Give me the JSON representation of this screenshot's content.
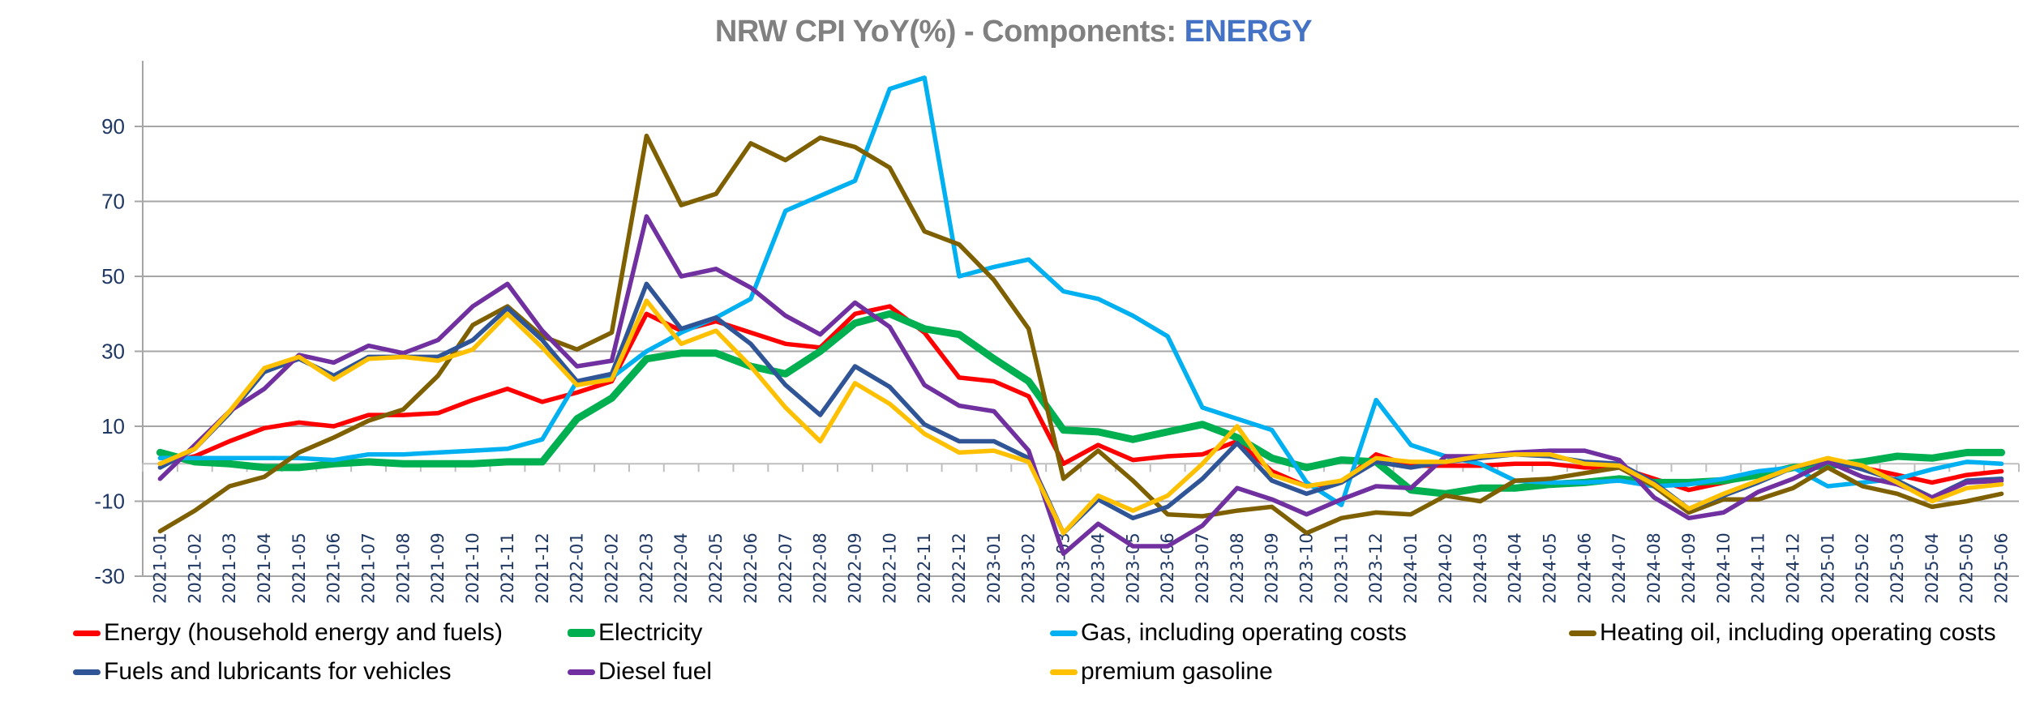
{
  "chart_data": {
    "type": "line",
    "title": "NRW CPI YoY(%) - Components: ",
    "title_accent": "ENERGY",
    "title_accent_color": "#4472c4",
    "xlabel": "",
    "ylabel": "",
    "ylim": [
      -30,
      105
    ],
    "yticks": [
      -30,
      -10,
      10,
      30,
      50,
      70,
      90
    ],
    "grid": true,
    "legend_position": "bottom",
    "categories": [
      "2021-01",
      "2021-02",
      "2021-03",
      "2021-04",
      "2021-05",
      "2021-06",
      "2021-07",
      "2021-08",
      "2021-09",
      "2021-10",
      "2021-11",
      "2021-12",
      "2022-01",
      "2022-02",
      "2022-03",
      "2022-04",
      "2022-05",
      "2022-06",
      "2022-07",
      "2022-08",
      "2022-09",
      "2022-10",
      "2022-11",
      "2022-12",
      "2023-01",
      "2023-02",
      "2023-03",
      "2023-04",
      "2023-05",
      "2023-06",
      "2023-07",
      "2023-08",
      "2023-09",
      "2023-10",
      "2023-11",
      "2023-12",
      "2024-01",
      "2024-02",
      "2024-03",
      "2024-04",
      "2024-05",
      "2024-06",
      "2024-07",
      "2024-08",
      "2024-09",
      "2024-10",
      "2024-11",
      "2024-12",
      "2025-01",
      "2025-02",
      "2025-03",
      "2025-04",
      "2025-05",
      "2025-06"
    ],
    "series": [
      {
        "name": "Energy (household energy and fuels)",
        "color": "#ff0000",
        "thick": false,
        "values": [
          0,
          2,
          6,
          9.5,
          11,
          10,
          13,
          13,
          13.5,
          17,
          20,
          16.5,
          19,
          22,
          40,
          35.5,
          38,
          35,
          32,
          31,
          40,
          42,
          35,
          23,
          22,
          18,
          0,
          5,
          1,
          2,
          2.5,
          6,
          -2,
          -6,
          -5,
          2.5,
          -0.5,
          -0.5,
          -0.5,
          0,
          0,
          -1,
          -1,
          -4,
          -7,
          -5,
          -3,
          -1,
          0,
          -1,
          -3,
          -5,
          -3,
          -2
        ]
      },
      {
        "name": "Electricity",
        "color": "#00b050",
        "thick": true,
        "values": [
          3,
          0.5,
          0,
          -1,
          -1,
          0,
          0.5,
          0,
          0,
          0,
          0.5,
          0.5,
          12,
          17.5,
          28,
          29.5,
          29.5,
          26,
          24,
          30,
          37.5,
          40,
          36,
          34.5,
          28,
          22,
          9,
          8.5,
          6.5,
          8.5,
          10.5,
          7,
          1.5,
          -1,
          1,
          0.5,
          -7,
          -8,
          -6.5,
          -6.5,
          -5.5,
          -5,
          -4,
          -5,
          -5,
          -4.5,
          -3,
          -1,
          -0.5,
          0.5,
          2,
          1.5,
          3,
          3
        ]
      },
      {
        "name": "Gas, including operating costs",
        "color": "#00b0f0",
        "thick": false,
        "values": [
          1.5,
          1.5,
          1.5,
          1.5,
          1.5,
          1,
          2.5,
          2.5,
          3,
          3.5,
          4,
          6.5,
          22,
          23,
          30,
          35,
          39,
          44,
          67.5,
          71.5,
          75.5,
          100,
          103,
          50,
          52.5,
          54.5,
          46,
          44,
          39.5,
          34,
          15,
          12,
          9,
          -5,
          -11,
          17,
          5,
          2,
          0,
          -4.5,
          -5,
          -5,
          -4.5,
          -6,
          -5.5,
          -4,
          -2,
          -1,
          -6,
          -5,
          -4,
          -1.5,
          0.5,
          0
        ]
      },
      {
        "name": "Heating oil, including operating costs",
        "color": "#7f6000",
        "thick": false,
        "values": [
          -18,
          -12.5,
          -6,
          -3.5,
          3,
          7,
          11.5,
          14.5,
          23.5,
          37,
          42,
          34,
          30.5,
          35,
          87.5,
          69,
          72,
          85.5,
          81,
          87,
          84.5,
          79,
          62,
          58.5,
          49,
          36,
          -4,
          3.5,
          -4.5,
          -13.5,
          -14,
          -12.5,
          -11.5,
          -18.5,
          -14.5,
          -13,
          -13.5,
          -8.5,
          -10,
          -4.5,
          -4,
          -2.5,
          -1,
          -6,
          -13,
          -9.5,
          -9.5,
          -6.5,
          -1,
          -6,
          -8,
          -11.5,
          -10,
          -8
        ]
      },
      {
        "name": "Fuels and lubricants for vehicles",
        "color": "#2f5597",
        "thick": false,
        "values": [
          -1,
          4,
          13.5,
          24.5,
          28,
          23.5,
          28.5,
          28.5,
          28.5,
          33,
          41.5,
          33,
          22,
          24,
          48,
          36,
          39,
          32,
          21,
          13,
          26,
          20.5,
          10.5,
          6,
          6,
          1.5,
          -18.5,
          -9.5,
          -14.5,
          -11.5,
          -4,
          5.5,
          -4.5,
          -8,
          -5,
          0.5,
          -1,
          0.5,
          1.5,
          2.5,
          2,
          0.5,
          0,
          -5,
          -12,
          -8.5,
          -5,
          -1,
          1,
          -1.5,
          -4.5,
          -9,
          -4.5,
          -4
        ]
      },
      {
        "name": "Diesel fuel",
        "color": "#7030a0",
        "thick": false,
        "values": [
          -4,
          5,
          14,
          20,
          29,
          27,
          31.5,
          29.5,
          33,
          42,
          48,
          35.5,
          26,
          27.5,
          66,
          50,
          52,
          47,
          39.5,
          34.5,
          43,
          36.5,
          21,
          15.5,
          14,
          3.5,
          -24,
          -16,
          -22,
          -22,
          -16.5,
          -6.5,
          -9.5,
          -13.5,
          -9.5,
          -6,
          -6.5,
          2,
          2,
          3,
          3.5,
          3.5,
          1,
          -9,
          -14.5,
          -13,
          -7.5,
          -4,
          0.5,
          -3.5,
          -5.5,
          -9,
          -5,
          -4.5
        ]
      },
      {
        "name": "premium gasoline",
        "color": "#ffc000",
        "thick": false,
        "values": [
          0,
          4,
          14,
          25.5,
          28.5,
          22.5,
          28,
          28.5,
          27.5,
          30.5,
          40,
          31,
          21,
          22.5,
          43.5,
          32,
          35.5,
          26,
          15,
          6,
          21.5,
          16,
          8,
          3,
          3.5,
          0.5,
          -18.5,
          -8.5,
          -12.5,
          -8.5,
          0,
          10,
          -3,
          -6,
          -4.5,
          1.5,
          0.5,
          0.5,
          2,
          2.5,
          2.5,
          0,
          -0.5,
          -5.5,
          -12,
          -8,
          -4.5,
          -1,
          1.5,
          -0.5,
          -5,
          -10,
          -6.5,
          -5.5
        ]
      }
    ]
  }
}
